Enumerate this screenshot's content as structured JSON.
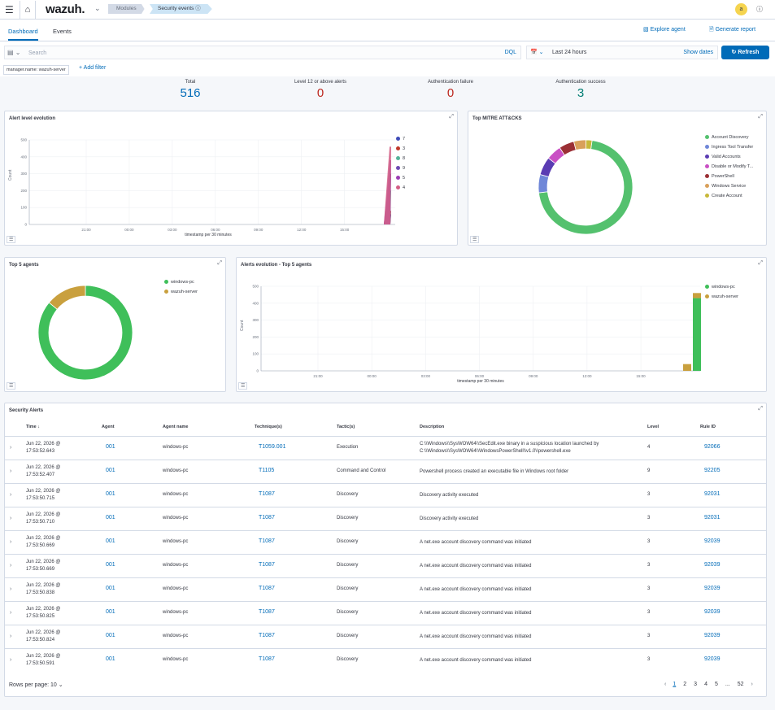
{
  "topbar": {
    "menu_icon": "hamburger-icon",
    "home_icon": "home-icon",
    "logo": "wazuh.",
    "breadcrumb": [
      "Modules",
      "Security events"
    ],
    "avatar": "a",
    "help_icon": "help-icon"
  },
  "tabs": {
    "items": [
      "Dashboard",
      "Events"
    ],
    "active": "Dashboard",
    "explore_agent": "Explore agent",
    "generate_report": "Generate report"
  },
  "query": {
    "placeholder": "Search",
    "language": "DQL",
    "date_range": "Last 24 hours",
    "show_dates": "Show dates",
    "refresh": "Refresh"
  },
  "filters": {
    "pill": "manager.name: wazuh-server",
    "add_filter": "+ Add filter"
  },
  "stats": [
    {
      "label": "Total",
      "value": "516",
      "color": "#006bb8"
    },
    {
      "label": "Level 12 or above alerts",
      "value": "0",
      "color": "#bd271e"
    },
    {
      "label": "Authentication failure",
      "value": "0",
      "color": "#bd271e"
    },
    {
      "label": "Authentication success",
      "value": "3",
      "color": "#017d73"
    }
  ],
  "panels": {
    "alert_level": {
      "title": "Alert level evolution",
      "ylabel": "Count",
      "xlabel": "timestamp per 30 minutes",
      "yticks": [
        "500",
        "400",
        "300",
        "200",
        "100",
        "0"
      ],
      "xticks": [
        "21:00",
        "00:00",
        "03:00",
        "06:00",
        "09:00",
        "12:00",
        "15:00"
      ],
      "legend": [
        {
          "name": "7",
          "color": "#3f4cb8"
        },
        {
          "name": "3",
          "color": "#c0392b"
        },
        {
          "name": "8",
          "color": "#54b399"
        },
        {
          "name": "9",
          "color": "#6e4bb3"
        },
        {
          "name": "5",
          "color": "#9c3fb4"
        },
        {
          "name": "4",
          "color": "#d36086"
        }
      ]
    },
    "mitre": {
      "title": "Top MITRE ATT&CKS",
      "legend": [
        {
          "name": "Account Discovery",
          "color": "#54c16e"
        },
        {
          "name": "Ingress Tool Transfer",
          "color": "#6f87d8"
        },
        {
          "name": "Valid Accounts",
          "color": "#5a3cb3"
        },
        {
          "name": "Disable or Modify T...",
          "color": "#c94fc4"
        },
        {
          "name": "PowerShell",
          "color": "#9b2f35"
        },
        {
          "name": "Windows Service",
          "color": "#d9a05b"
        },
        {
          "name": "Create Account",
          "color": "#c8b83a"
        }
      ]
    },
    "top_agents": {
      "title": "Top 5 agents",
      "legend": [
        {
          "name": "windows-pc",
          "color": "#3fbf5a"
        },
        {
          "name": "wazuh-server",
          "color": "#c9a03e"
        }
      ]
    },
    "agents_evolution": {
      "title": "Alerts evolution - Top 5 agents",
      "ylabel": "Count",
      "xlabel": "timestamp per 30 minutes",
      "yticks": [
        "500",
        "400",
        "300",
        "200",
        "100",
        "0"
      ],
      "xticks": [
        "21:00",
        "00:00",
        "03:00",
        "06:00",
        "09:00",
        "12:00",
        "15:00"
      ],
      "legend": [
        {
          "name": "windows-pc",
          "color": "#3fbf5a"
        },
        {
          "name": "wazuh-server",
          "color": "#c9a03e"
        }
      ]
    }
  },
  "chart_data": [
    {
      "type": "pie",
      "title": "Top MITRE ATT&CKS",
      "categories": [
        "Account Discovery",
        "Ingress Tool Transfer",
        "Valid Accounts",
        "Disable or Modify T...",
        "PowerShell",
        "Windows Service",
        "Create Account"
      ],
      "values": [
        68,
        6,
        6,
        5,
        5,
        4,
        2
      ]
    },
    {
      "type": "pie",
      "title": "Top 5 agents",
      "categories": [
        "windows-pc",
        "wazuh-server"
      ],
      "values": [
        86,
        14
      ]
    },
    {
      "type": "bar",
      "title": "Alerts evolution - Top 5 agents",
      "xlabel": "timestamp per 30 minutes",
      "ylabel": "Count",
      "ylim": [
        0,
        500
      ],
      "series": [
        {
          "name": "windows-pc",
          "values": [
            0,
            430
          ]
        },
        {
          "name": "wazuh-server",
          "values": [
            40,
            30
          ]
        }
      ]
    }
  ],
  "table": {
    "title": "Security Alerts",
    "columns": [
      "Time ↓",
      "Agent",
      "Agent name",
      "Technique(s)",
      "Tactic(s)",
      "Description",
      "Level",
      "Rule ID"
    ],
    "rows": [
      {
        "time1": "Jun 22, 2026 @",
        "time2": "17:53:52.643",
        "agent": "001",
        "name": "windows-pc",
        "tech": "T1059.001",
        "tactic": "Execution",
        "desc1": "C:\\\\Windows\\\\SysWOW64\\\\SecEdit.exe binary in a suspicious location launched by",
        "desc2": "C:\\\\Windows\\\\SysWOW64\\\\WindowsPowerShell\\\\v1.0\\\\powershell.exe",
        "level": "4",
        "rule": "92066"
      },
      {
        "time1": "Jun 22, 2026 @",
        "time2": "17:53:52.407",
        "agent": "001",
        "name": "windows-pc",
        "tech": "T1105",
        "tactic": "Command and Control",
        "desc1": "Powershell process created an executable file in Windows root folder",
        "desc2": "",
        "level": "9",
        "rule": "92205"
      },
      {
        "time1": "Jun 22, 2026 @",
        "time2": "17:53:50.715",
        "agent": "001",
        "name": "windows-pc",
        "tech": "T1087",
        "tactic": "Discovery",
        "desc1": "Discovery activity executed",
        "desc2": "",
        "level": "3",
        "rule": "92031"
      },
      {
        "time1": "Jun 22, 2026 @",
        "time2": "17:53:50.710",
        "agent": "001",
        "name": "windows-pc",
        "tech": "T1087",
        "tactic": "Discovery",
        "desc1": "Discovery activity executed",
        "desc2": "",
        "level": "3",
        "rule": "92031"
      },
      {
        "time1": "Jun 22, 2026 @",
        "time2": "17:53:50.669",
        "agent": "001",
        "name": "windows-pc",
        "tech": "T1087",
        "tactic": "Discovery",
        "desc1": "A net.exe account discovery command was initiated",
        "desc2": "",
        "level": "3",
        "rule": "92039"
      },
      {
        "time1": "Jun 22, 2026 @",
        "time2": "17:53:50.669",
        "agent": "001",
        "name": "windows-pc",
        "tech": "T1087",
        "tactic": "Discovery",
        "desc1": "A net.exe account discovery command was initiated",
        "desc2": "",
        "level": "3",
        "rule": "92039"
      },
      {
        "time1": "Jun 22, 2026 @",
        "time2": "17:53:50.838",
        "agent": "001",
        "name": "windows-pc",
        "tech": "T1087",
        "tactic": "Discovery",
        "desc1": "A net.exe account discovery command was initiated",
        "desc2": "",
        "level": "3",
        "rule": "92039"
      },
      {
        "time1": "Jun 22, 2026 @",
        "time2": "17:53:50.825",
        "agent": "001",
        "name": "windows-pc",
        "tech": "T1087",
        "tactic": "Discovery",
        "desc1": "A net.exe account discovery command was initiated",
        "desc2": "",
        "level": "3",
        "rule": "92039"
      },
      {
        "time1": "Jun 22, 2026 @",
        "time2": "17:53:50.824",
        "agent": "001",
        "name": "windows-pc",
        "tech": "T1087",
        "tactic": "Discovery",
        "desc1": "A net.exe account discovery command was initiated",
        "desc2": "",
        "level": "3",
        "rule": "92039"
      },
      {
        "time1": "Jun 22, 2026 @",
        "time2": "17:53:50.591",
        "agent": "001",
        "name": "windows-pc",
        "tech": "T1087",
        "tactic": "Discovery",
        "desc1": "A net.exe account discovery command was initiated",
        "desc2": "",
        "level": "3",
        "rule": "92039"
      }
    ],
    "rows_per_page": "Rows per page: 10",
    "pages": [
      "1",
      "2",
      "3",
      "4",
      "5",
      "...",
      "52"
    ]
  }
}
